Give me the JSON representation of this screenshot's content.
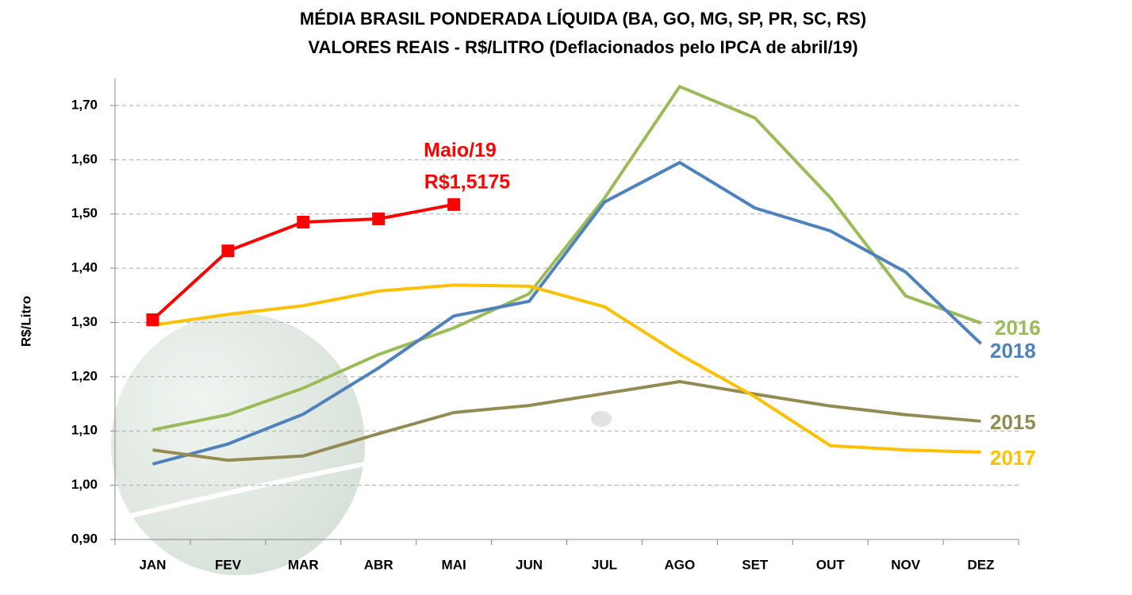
{
  "chart_data": {
    "type": "line",
    "title": "MÉDIA BRASIL PONDERADA LÍQUIDA (BA, GO, MG, SP, PR, SC, RS)",
    "subtitle": "VALORES REAIS - R$/LITRO (Deflacionados pelo IPCA de abril/19)",
    "y_label": "R$/Litro",
    "annotations": [
      "Maio/19",
      "R$1,5175"
    ],
    "categories": [
      "JAN",
      "FEV",
      "MAR",
      "ABR",
      "MAI",
      "JUN",
      "JUL",
      "AGO",
      "SET",
      "OUT",
      "NOV",
      "DEZ"
    ],
    "ylim": [
      0.9,
      1.75
    ],
    "yticks": [
      {
        "value": 0.9,
        "label": "0,90"
      },
      {
        "value": 1.0,
        "label": "1,00"
      },
      {
        "value": 1.1,
        "label": "1,10"
      },
      {
        "value": 1.2,
        "label": "1,20"
      },
      {
        "value": 1.3,
        "label": "1,30"
      },
      {
        "value": 1.4,
        "label": "1,40"
      },
      {
        "value": 1.5,
        "label": "1,50"
      },
      {
        "value": 1.6,
        "label": "1,60"
      },
      {
        "value": 1.7,
        "label": "1,70"
      }
    ],
    "grid": true,
    "series": [
      {
        "name": "2016",
        "color": "#9bbb59",
        "values": [
          1.102,
          1.13,
          1.179,
          1.241,
          1.29,
          1.353,
          1.529,
          1.735,
          1.677,
          1.53,
          1.349,
          1.299
        ]
      },
      {
        "name": "2018",
        "color": "#4f81bd",
        "values": [
          1.039,
          1.076,
          1.131,
          1.216,
          1.312,
          1.339,
          1.522,
          1.595,
          1.511,
          1.469,
          1.393,
          1.261
        ]
      },
      {
        "name": "2015",
        "color": "#948a54",
        "values": [
          1.065,
          1.046,
          1.054,
          1.095,
          1.134,
          1.147,
          1.169,
          1.191,
          1.168,
          1.146,
          1.13,
          1.118
        ]
      },
      {
        "name": "2017",
        "color": "#ffc000",
        "values": [
          1.295,
          1.315,
          1.331,
          1.358,
          1.369,
          1.367,
          1.329,
          1.241,
          1.163,
          1.073,
          1.065,
          1.061
        ]
      },
      {
        "color": "#ff0000",
        "markers": true,
        "values": [
          1.305,
          1.432,
          1.485,
          1.491,
          1.5175,
          null,
          null,
          null,
          null,
          null,
          null,
          null
        ]
      }
    ]
  }
}
